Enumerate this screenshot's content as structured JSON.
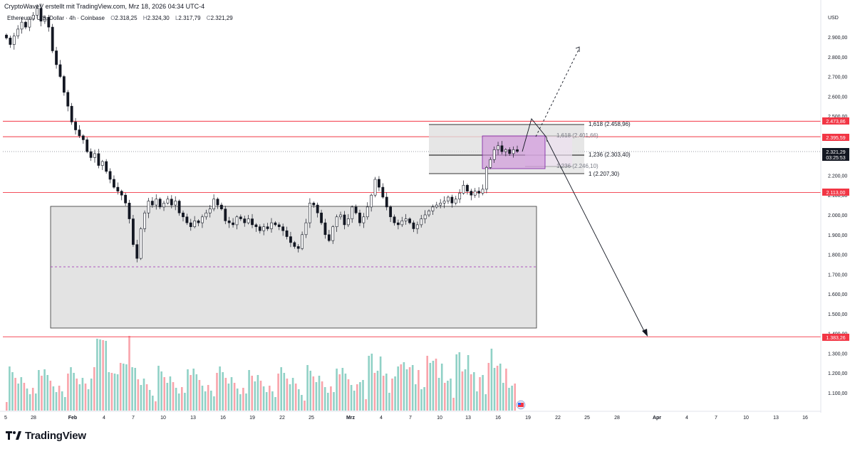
{
  "header": {
    "title": "CryptoWaveV erstellt mit TradingView.com, Mrz 18, 2026 04:34 UTC-4"
  },
  "symbol": {
    "name": "Ethereum / U.S. Dollar · 4h · Coinbase",
    "open_label": "O",
    "open": "2.318,25",
    "high_label": "H",
    "high": "2.324,30",
    "low_label": "L",
    "low": "2.317,79",
    "close_label": "C",
    "close": "2.321,29"
  },
  "axis": {
    "currency": "USD",
    "price_ticks": [
      "2.900,00",
      "2.800,00",
      "2.700,00",
      "2.600,00",
      "2.500,00",
      "2.400,00",
      "2.300,00",
      "2.200,00",
      "2.100,00",
      "2.000,00",
      "1.900,00",
      "1.800,00",
      "1.700,00",
      "1.600,00",
      "1.500,00",
      "1.400,00",
      "1.300,00",
      "1.200,00",
      "1.100,00"
    ],
    "time_ticks": [
      "5",
      "28",
      "Feb",
      "4",
      "7",
      "10",
      "13",
      "16",
      "19",
      "22",
      "25",
      "Mrz",
      "4",
      "7",
      "10",
      "13",
      "16",
      "19",
      "22",
      "25",
      "28",
      "Apr",
      "4",
      "7",
      "10",
      "13",
      "16"
    ]
  },
  "price_labels": [
    {
      "text": "2.473,86",
      "color": "#f23645"
    },
    {
      "text": "2.395,59",
      "color": "#f23645"
    },
    {
      "text": "2.321,29",
      "color": "#131722",
      "countdown": "03:25:53"
    },
    {
      "text": "2.113,00",
      "color": "#f23645"
    },
    {
      "text": "1.383,26",
      "color": "#f23645"
    }
  ],
  "fib_labels": {
    "outer_1618": "1,618 (2.458,96)",
    "outer_1236": "1,236 (2.303,40)",
    "outer_1": "1 (2.207,30)",
    "inner_1618": "1,618 (2.401,66)",
    "inner_1236": "1,236 (2.246,10)"
  },
  "footer": {
    "brand": "TradingView"
  },
  "colors": {
    "up": "#089981",
    "down": "#f23645",
    "resistance": "#f23645",
    "zone": "#e0e0e0",
    "fib_inner": "#ce93d8"
  },
  "chart_data": {
    "type": "candlestick",
    "title": "",
    "y_unit": "USD",
    "ylim": [
      1040,
      3060
    ],
    "horizontal_levels": [
      2473.86,
      2395.59,
      2113.0,
      1383.26
    ],
    "last_price": 2321.29,
    "demand_zone": {
      "top": 2048,
      "bottom": 1425,
      "mid": 1736
    },
    "fib_outer": {
      "1.618": 2458.96,
      "1.236": 2303.4,
      "1": 2207.3
    },
    "fib_inner": {
      "1.618": 2401.66,
      "1.236": 2246.1
    },
    "projection_path": [
      2330,
      2486,
      2380,
      1390
    ],
    "projection_dashed_target": 2855,
    "close_series": [
      2895,
      2862,
      2905,
      2940,
      2975,
      2950,
      2990,
      3010,
      3045,
      2980,
      3000,
      2950,
      2830,
      2760,
      2700,
      2620,
      2550,
      2470,
      2430,
      2400,
      2380,
      2320,
      2290,
      2310,
      2250,
      2270,
      2220,
      2180,
      2140,
      2120,
      2100,
      2060,
      1980,
      1850,
      1780,
      1930,
      2010,
      2070,
      2050,
      2080,
      2040,
      2060,
      2080,
      2050,
      2070,
      2010,
      1990,
      1960,
      1940,
      1970,
      1960,
      1990,
      2010,
      2030,
      2080,
      2050,
      2030,
      1970,
      1960,
      1950,
      1990,
      1980,
      1960,
      1980,
      1950,
      1940,
      1920,
      1940,
      1930,
      1960,
      1950,
      1940,
      1920,
      1890,
      1860,
      1840,
      1830,
      1900,
      1960,
      2060,
      2050,
      2010,
      1960,
      1900,
      1870,
      1940,
      1990,
      2000,
      1950,
      1980,
      2040,
      2010,
      1960,
      1990,
      2040,
      2100,
      2180,
      2140,
      2090,
      2040,
      1990,
      1960,
      1950,
      1970,
      1980,
      1960,
      1930,
      1950,
      1980,
      2000,
      2020,
      2040,
      2050,
      2060,
      2070,
      2090,
      2060,
      2080,
      2110,
      2150,
      2120,
      2100,
      2120,
      2110,
      2130,
      2240,
      2280,
      2330,
      2350,
      2320,
      2330,
      2310,
      2330,
      2321
    ]
  }
}
